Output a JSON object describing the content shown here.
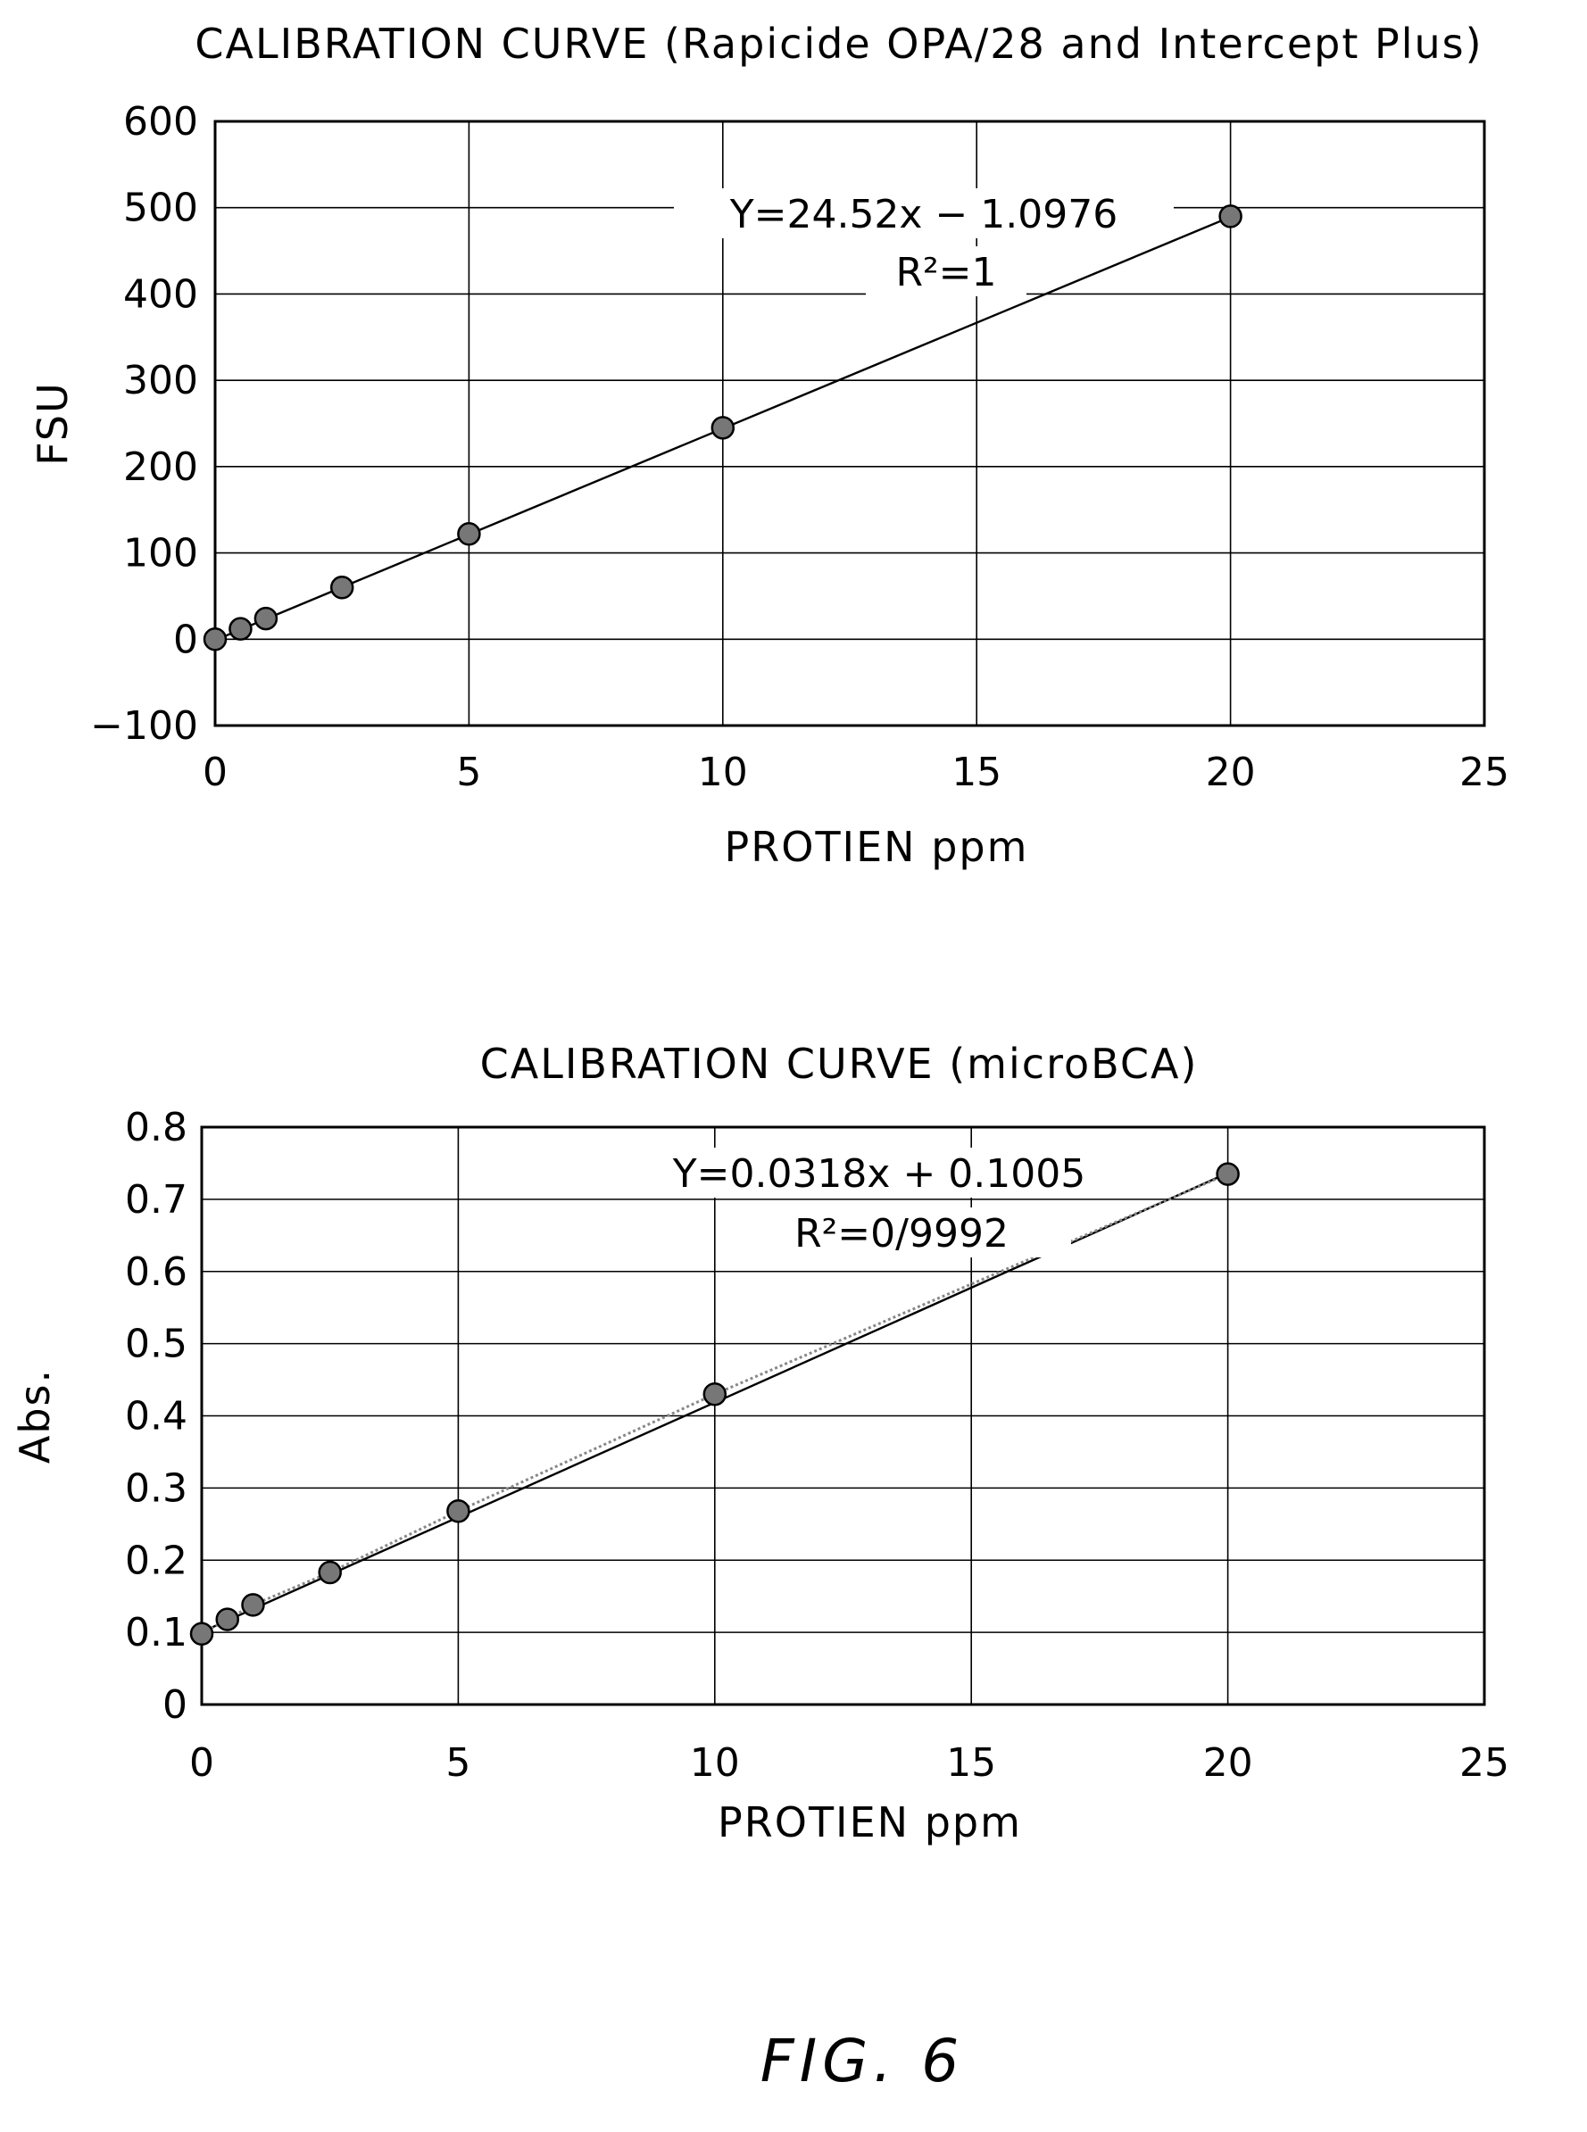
{
  "figure_label": "FIG. 6",
  "chart_data": [
    {
      "type": "scatter",
      "title": "CALIBRATION CURVE (Rapicide OPA/28 and Intercept Plus)",
      "xlabel": "PROTIEN ppm",
      "ylabel": "FSU",
      "xlim": [
        0,
        25
      ],
      "ylim": [
        -100,
        600
      ],
      "xticks": [
        "0",
        "5",
        "10",
        "15",
        "20",
        "25"
      ],
      "yticks": [
        "600",
        "500",
        "400",
        "300",
        "200",
        "100",
        "0",
        "−100"
      ],
      "grid": true,
      "series": [
        {
          "x": [
            0,
            0.5,
            1,
            2.5,
            5,
            10,
            20
          ],
          "y": [
            0,
            12,
            24,
            60,
            122,
            245,
            490
          ]
        }
      ],
      "trendline": {
        "slope": 24.52,
        "intercept": -1.0976
      },
      "annotations": [
        "Y=24.52x − 1.0976",
        "R²=1"
      ]
    },
    {
      "type": "scatter",
      "title": "CALIBRATION CURVE (microBCA)",
      "xlabel": "PROTIEN ppm",
      "ylabel": "Abs.",
      "xlim": [
        0,
        25
      ],
      "ylim": [
        0,
        0.8
      ],
      "xticks": [
        "0",
        "5",
        "10",
        "15",
        "20",
        "25"
      ],
      "yticks": [
        "0.8",
        "0.7",
        "0.6",
        "0.5",
        "0.4",
        "0.3",
        "0.2",
        "0.1",
        "0"
      ],
      "grid": true,
      "series": [
        {
          "x": [
            0,
            0.5,
            1,
            2.5,
            5,
            10,
            20
          ],
          "y": [
            0.098,
            0.118,
            0.138,
            0.183,
            0.268,
            0.43,
            0.735
          ]
        }
      ],
      "trendline": {
        "slope": 0.0318,
        "intercept": 0.1005
      },
      "annotations": [
        "Y=0.0318x + 0.1005",
        "R²=0/9992"
      ]
    }
  ]
}
